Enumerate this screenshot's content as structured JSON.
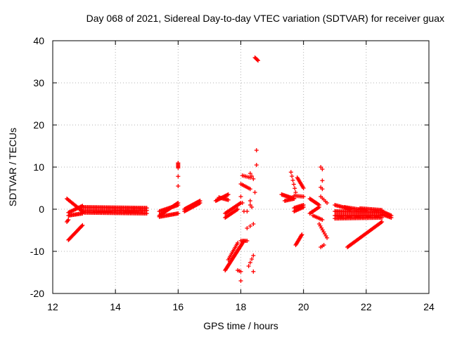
{
  "chart_data": {
    "type": "scatter",
    "title": "Day 068 of 2021, Sidereal Day-to-day VTEC variation (SDTVAR) for receiver guax",
    "xlabel": "GPS time / hours",
    "ylabel": "SDTVAR / TECUs",
    "xlim": [
      12,
      24
    ],
    "ylim": [
      -20,
      40
    ],
    "xticks": [
      12,
      14,
      16,
      18,
      20,
      22,
      24
    ],
    "yticks": [
      -20,
      -10,
      0,
      10,
      20,
      30,
      40
    ],
    "grid": true,
    "marker": "+",
    "color": "#ff0000",
    "segments": [
      {
        "x": [
          12.45,
          12.95
        ],
        "y": [
          2.5,
          -0.5
        ],
        "n": 18
      },
      {
        "x": [
          12.5,
          12.95
        ],
        "y": [
          -0.8,
          0.8
        ],
        "n": 15
      },
      {
        "x": [
          12.5,
          12.95
        ],
        "y": [
          -1.5,
          -1.0
        ],
        "n": 15
      },
      {
        "x": [
          12.5,
          12.95
        ],
        "y": [
          -7.3,
          -3.8
        ],
        "n": 20
      },
      {
        "x": [
          12.45,
          12.5
        ],
        "y": [
          -3.0,
          -2.5
        ],
        "n": 3
      },
      {
        "x": [
          12.9,
          15.0
        ],
        "y": [
          0.5,
          0.3
        ],
        "n": 60
      },
      {
        "x": [
          12.9,
          15.0
        ],
        "y": [
          -0.4,
          -0.3
        ],
        "n": 60
      },
      {
        "x": [
          13.0,
          15.0
        ],
        "y": [
          -0.8,
          -1.0
        ],
        "n": 55
      },
      {
        "x": [
          15.4,
          16.0
        ],
        "y": [
          -1.5,
          1.5
        ],
        "n": 25
      },
      {
        "x": [
          15.4,
          16.0
        ],
        "y": [
          -0.5,
          1.0
        ],
        "n": 20
      },
      {
        "x": [
          15.4,
          16.0
        ],
        "y": [
          -1.8,
          -1.0
        ],
        "n": 20
      },
      {
        "x": [
          16.0,
          16.0
        ],
        "y": [
          9.8,
          11.0
        ],
        "n": 6
      },
      {
        "x": [
          16.0,
          16.0
        ],
        "y": [
          7.8,
          7.8
        ],
        "n": 1
      },
      {
        "x": [
          16.0,
          16.0
        ],
        "y": [
          5.5,
          5.5
        ],
        "n": 1
      },
      {
        "x": [
          16.2,
          16.7
        ],
        "y": [
          0.0,
          2.0
        ],
        "n": 20
      },
      {
        "x": [
          16.2,
          16.7
        ],
        "y": [
          -0.5,
          1.5
        ],
        "n": 18
      },
      {
        "x": [
          17.2,
          17.6
        ],
        "y": [
          2.0,
          3.5
        ],
        "n": 15
      },
      {
        "x": [
          17.3,
          17.6
        ],
        "y": [
          2.8,
          2.2
        ],
        "n": 10
      },
      {
        "x": [
          17.5,
          18.0
        ],
        "y": [
          -1.0,
          1.5
        ],
        "n": 18
      },
      {
        "x": [
          17.5,
          17.9
        ],
        "y": [
          -2.0,
          0.0
        ],
        "n": 15
      },
      {
        "x": [
          17.5,
          18.1
        ],
        "y": [
          -14.5,
          -7.5
        ],
        "n": 35
      },
      {
        "x": [
          17.6,
          17.9
        ],
        "y": [
          -12.0,
          -8.0
        ],
        "n": 12
      },
      {
        "x": [
          17.9,
          18.0
        ],
        "y": [
          -14.5,
          -14.8
        ],
        "n": 3
      },
      {
        "x": [
          18.0,
          18.0
        ],
        "y": [
          -17.0,
          -17.0
        ],
        "n": 1
      },
      {
        "x": [
          18.0,
          18.2
        ],
        "y": [
          -7.5,
          -7.5
        ],
        "n": 6
      },
      {
        "x": [
          18.0,
          18.3
        ],
        "y": [
          6.0,
          4.8
        ],
        "n": 8
      },
      {
        "x": [
          18.05,
          18.3
        ],
        "y": [
          8.0,
          7.5
        ],
        "n": 6
      },
      {
        "x": [
          18.3,
          18.4
        ],
        "y": [
          8.5,
          7.2
        ],
        "n": 3
      },
      {
        "x": [
          18.0,
          18.05
        ],
        "y": [
          3.0,
          1.5
        ],
        "n": 2
      },
      {
        "x": [
          18.1,
          18.2
        ],
        "y": [
          -0.5,
          -0.5
        ],
        "n": 2
      },
      {
        "x": [
          18.2,
          18.4
        ],
        "y": [
          -4.5,
          -3.5
        ],
        "n": 3
      },
      {
        "x": [
          18.3,
          18.3
        ],
        "y": [
          2.0,
          2.0
        ],
        "n": 1
      },
      {
        "x": [
          18.3,
          18.35
        ],
        "y": [
          1.0,
          0.5
        ],
        "n": 2
      },
      {
        "x": [
          18.25,
          18.4
        ],
        "y": [
          -13.5,
          -11.0
        ],
        "n": 4
      },
      {
        "x": [
          18.4,
          18.4
        ],
        "y": [
          -14.8,
          -14.8
        ],
        "n": 1
      },
      {
        "x": [
          18.45,
          18.5
        ],
        "y": [
          4.0,
          4.0
        ],
        "n": 1
      },
      {
        "x": [
          18.5,
          18.5
        ],
        "y": [
          10.5,
          10.5
        ],
        "n": 1
      },
      {
        "x": [
          18.5,
          18.5
        ],
        "y": [
          14.0,
          14.0
        ],
        "n": 1
      },
      {
        "x": [
          18.45,
          18.55
        ],
        "y": [
          36.0,
          35.3
        ],
        "n": 5
      },
      {
        "x": [
          19.3,
          19.7
        ],
        "y": [
          3.5,
          2.5
        ],
        "n": 15
      },
      {
        "x": [
          19.4,
          19.7
        ],
        "y": [
          2.0,
          2.5
        ],
        "n": 10
      },
      {
        "x": [
          19.6,
          19.75
        ],
        "y": [
          8.8,
          4.0
        ],
        "n": 6
      },
      {
        "x": [
          19.8,
          20.0
        ],
        "y": [
          7.5,
          5.0
        ],
        "n": 10
      },
      {
        "x": [
          19.7,
          20.0
        ],
        "y": [
          0.3,
          1.0
        ],
        "n": 10
      },
      {
        "x": [
          19.7,
          20.0
        ],
        "y": [
          -0.5,
          0.5
        ],
        "n": 10
      },
      {
        "x": [
          19.7,
          20.0
        ],
        "y": [
          3.2,
          3.0
        ],
        "n": 8
      },
      {
        "x": [
          19.75,
          19.95
        ],
        "y": [
          -8.5,
          -6.0
        ],
        "n": 12
      },
      {
        "x": [
          20.2,
          20.5
        ],
        "y": [
          2.5,
          1.0
        ],
        "n": 12
      },
      {
        "x": [
          20.2,
          20.5
        ],
        "y": [
          -1.0,
          0.5
        ],
        "n": 10
      },
      {
        "x": [
          20.3,
          20.6
        ],
        "y": [
          -1.5,
          -2.5
        ],
        "n": 8
      },
      {
        "x": [
          20.55,
          20.6
        ],
        "y": [
          10.0,
          9.5
        ],
        "n": 2
      },
      {
        "x": [
          20.6,
          20.6
        ],
        "y": [
          6.8,
          6.8
        ],
        "n": 1
      },
      {
        "x": [
          20.55,
          20.6
        ],
        "y": [
          5.2,
          4.8
        ],
        "n": 2
      },
      {
        "x": [
          20.55,
          20.75
        ],
        "y": [
          3.0,
          1.5
        ],
        "n": 5
      },
      {
        "x": [
          20.5,
          20.75
        ],
        "y": [
          -3.5,
          -6.8
        ],
        "n": 8
      },
      {
        "x": [
          20.55,
          20.65
        ],
        "y": [
          -9.0,
          -8.5
        ],
        "n": 3
      },
      {
        "x": [
          21.0,
          21.5
        ],
        "y": [
          1.0,
          0.0
        ],
        "n": 15
      },
      {
        "x": [
          21.0,
          22.5
        ],
        "y": [
          -0.5,
          -0.8
        ],
        "n": 45
      },
      {
        "x": [
          21.0,
          22.5
        ],
        "y": [
          -1.5,
          -1.5
        ],
        "n": 45
      },
      {
        "x": [
          21.0,
          22.5
        ],
        "y": [
          -2.2,
          -2.0
        ],
        "n": 40
      },
      {
        "x": [
          21.3,
          22.0
        ],
        "y": [
          0.5,
          -0.3
        ],
        "n": 20
      },
      {
        "x": [
          21.8,
          22.5
        ],
        "y": [
          0.2,
          -0.2
        ],
        "n": 20
      },
      {
        "x": [
          21.4,
          22.5
        ],
        "y": [
          -9.0,
          -3.0
        ],
        "n": 40
      },
      {
        "x": [
          22.5,
          22.8
        ],
        "y": [
          -0.5,
          -1.5
        ],
        "n": 10
      },
      {
        "x": [
          22.5,
          22.8
        ],
        "y": [
          -1.2,
          -2.0
        ],
        "n": 10
      }
    ]
  }
}
